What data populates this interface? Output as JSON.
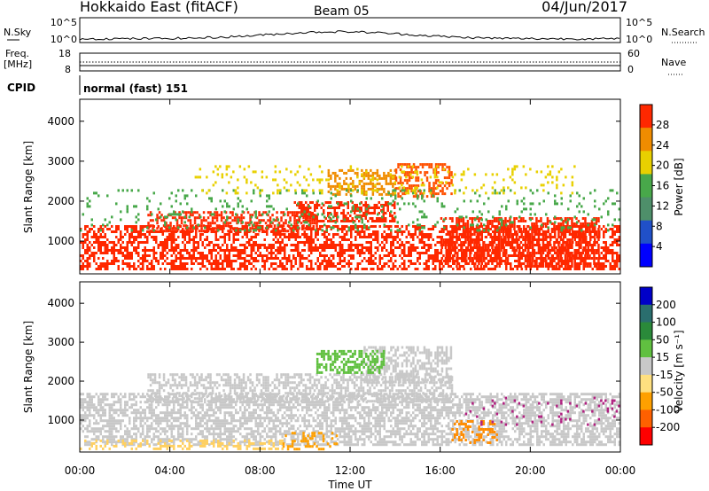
{
  "header": {
    "title": "Hokkaido East (fitACF)",
    "beam": "Beam 05",
    "date": "04/Jun/2017"
  },
  "noise_panel": {
    "left_label": "N.Sky",
    "right_label": "N.Search",
    "tick_top": "10^5",
    "tick_bottom": "10^0",
    "right_tick_top": "10^5",
    "right_tick_bottom": "10^0"
  },
  "freq_panel": {
    "left_label_line1": "Freq.",
    "left_label_line2": "[MHz]",
    "left_tick_top": "18",
    "left_tick_bottom": "8",
    "right_label": "Nave",
    "right_tick_top": "60",
    "right_tick_bottom": "0"
  },
  "cpid_panel": {
    "label": "CPID",
    "value": "normal (fast) 151"
  },
  "chart_data": [
    {
      "type": "heatmap",
      "name": "power",
      "ylabel": "Slant Range [km]",
      "xlabel": "",
      "xlim_hours": [
        0,
        24
      ],
      "ylim": [
        180,
        4550
      ],
      "yticks": [
        "1000",
        "2000",
        "3000",
        "4000"
      ],
      "colorbar_label": "Power [dB]",
      "colorbar_ticks": [
        "4",
        "8",
        "12",
        "16",
        "20",
        "24",
        "28"
      ],
      "colorbar_colors": [
        "#0000ff",
        "#2050c8",
        "#4e8f6a",
        "#48a84a",
        "#e8d000",
        "#f08c00",
        "#ff2800"
      ],
      "regions": [
        {
          "t0": 0.0,
          "t1": 24.0,
          "r0": 300,
          "r1": 1400,
          "color": "#ff2800",
          "density": 0.55
        },
        {
          "t0": 3.0,
          "t1": 10.5,
          "r0": 1250,
          "r1": 1750,
          "color": "#ff2800",
          "density": 0.5
        },
        {
          "t0": 9.5,
          "t1": 14.0,
          "r0": 1500,
          "r1": 2000,
          "color": "#ff2800",
          "density": 0.55
        },
        {
          "t0": 11.0,
          "t1": 14.0,
          "r0": 2200,
          "r1": 2800,
          "color": "#f08c00",
          "density": 0.5
        },
        {
          "t0": 14.0,
          "t1": 16.5,
          "r0": 2100,
          "r1": 2950,
          "color": "#ff5000",
          "density": 0.45
        },
        {
          "t0": 16.0,
          "t1": 23.0,
          "r0": 400,
          "r1": 1600,
          "color": "#ff2800",
          "density": 0.5
        },
        {
          "t0": 0.0,
          "t1": 24.0,
          "r0": 1300,
          "r1": 2300,
          "color": "#48a84a",
          "density": 0.12
        },
        {
          "t0": 5.0,
          "t1": 22.0,
          "r0": 2200,
          "r1": 2900,
          "color": "#e8d000",
          "density": 0.12
        }
      ]
    },
    {
      "type": "heatmap",
      "name": "velocity",
      "ylabel": "Slant Range [km]",
      "xlabel": "Time UT",
      "xlim_hours": [
        0,
        24
      ],
      "xticks": [
        "00:00",
        "04:00",
        "08:00",
        "12:00",
        "16:00",
        "20:00",
        "00:00"
      ],
      "ylim": [
        180,
        4550
      ],
      "yticks": [
        "1000",
        "2000",
        "3000",
        "4000"
      ],
      "colorbar_label": "Velocity [m s⁻¹]",
      "colorbar_ticks": [
        "-200",
        "-100",
        "-50",
        "-15",
        "15",
        "50",
        "100",
        "200"
      ],
      "colorbar_colors": [
        "#ff0000",
        "#ff6000",
        "#ffa000",
        "#ffe080",
        "#c8c8c8",
        "#60c040",
        "#2a8a3a",
        "#2a6e6e",
        "#0000c8"
      ],
      "regions": [
        {
          "t0": 0.0,
          "t1": 24.0,
          "r0": 400,
          "r1": 1700,
          "color": "#c8c8c8",
          "density": 0.6
        },
        {
          "t0": 3.0,
          "t1": 16.5,
          "r0": 1500,
          "r1": 2200,
          "color": "#c8c8c8",
          "density": 0.55
        },
        {
          "t0": 12.5,
          "t1": 16.5,
          "r0": 2000,
          "r1": 2900,
          "color": "#c8c8c8",
          "density": 0.55
        },
        {
          "t0": 10.5,
          "t1": 13.5,
          "r0": 2200,
          "r1": 2800,
          "color": "#60c040",
          "density": 0.55
        },
        {
          "t0": 0.0,
          "t1": 9.0,
          "r0": 250,
          "r1": 500,
          "color": "#ffd060",
          "density": 0.35
        },
        {
          "t0": 9.0,
          "t1": 11.5,
          "r0": 250,
          "r1": 700,
          "color": "#ffa000",
          "density": 0.3
        },
        {
          "t0": 16.5,
          "t1": 18.5,
          "r0": 400,
          "r1": 1000,
          "color": "#ff8c00",
          "density": 0.35
        },
        {
          "t0": 17.0,
          "t1": 24.0,
          "r0": 900,
          "r1": 1600,
          "color": "#b02080",
          "density": 0.08
        }
      ]
    }
  ]
}
